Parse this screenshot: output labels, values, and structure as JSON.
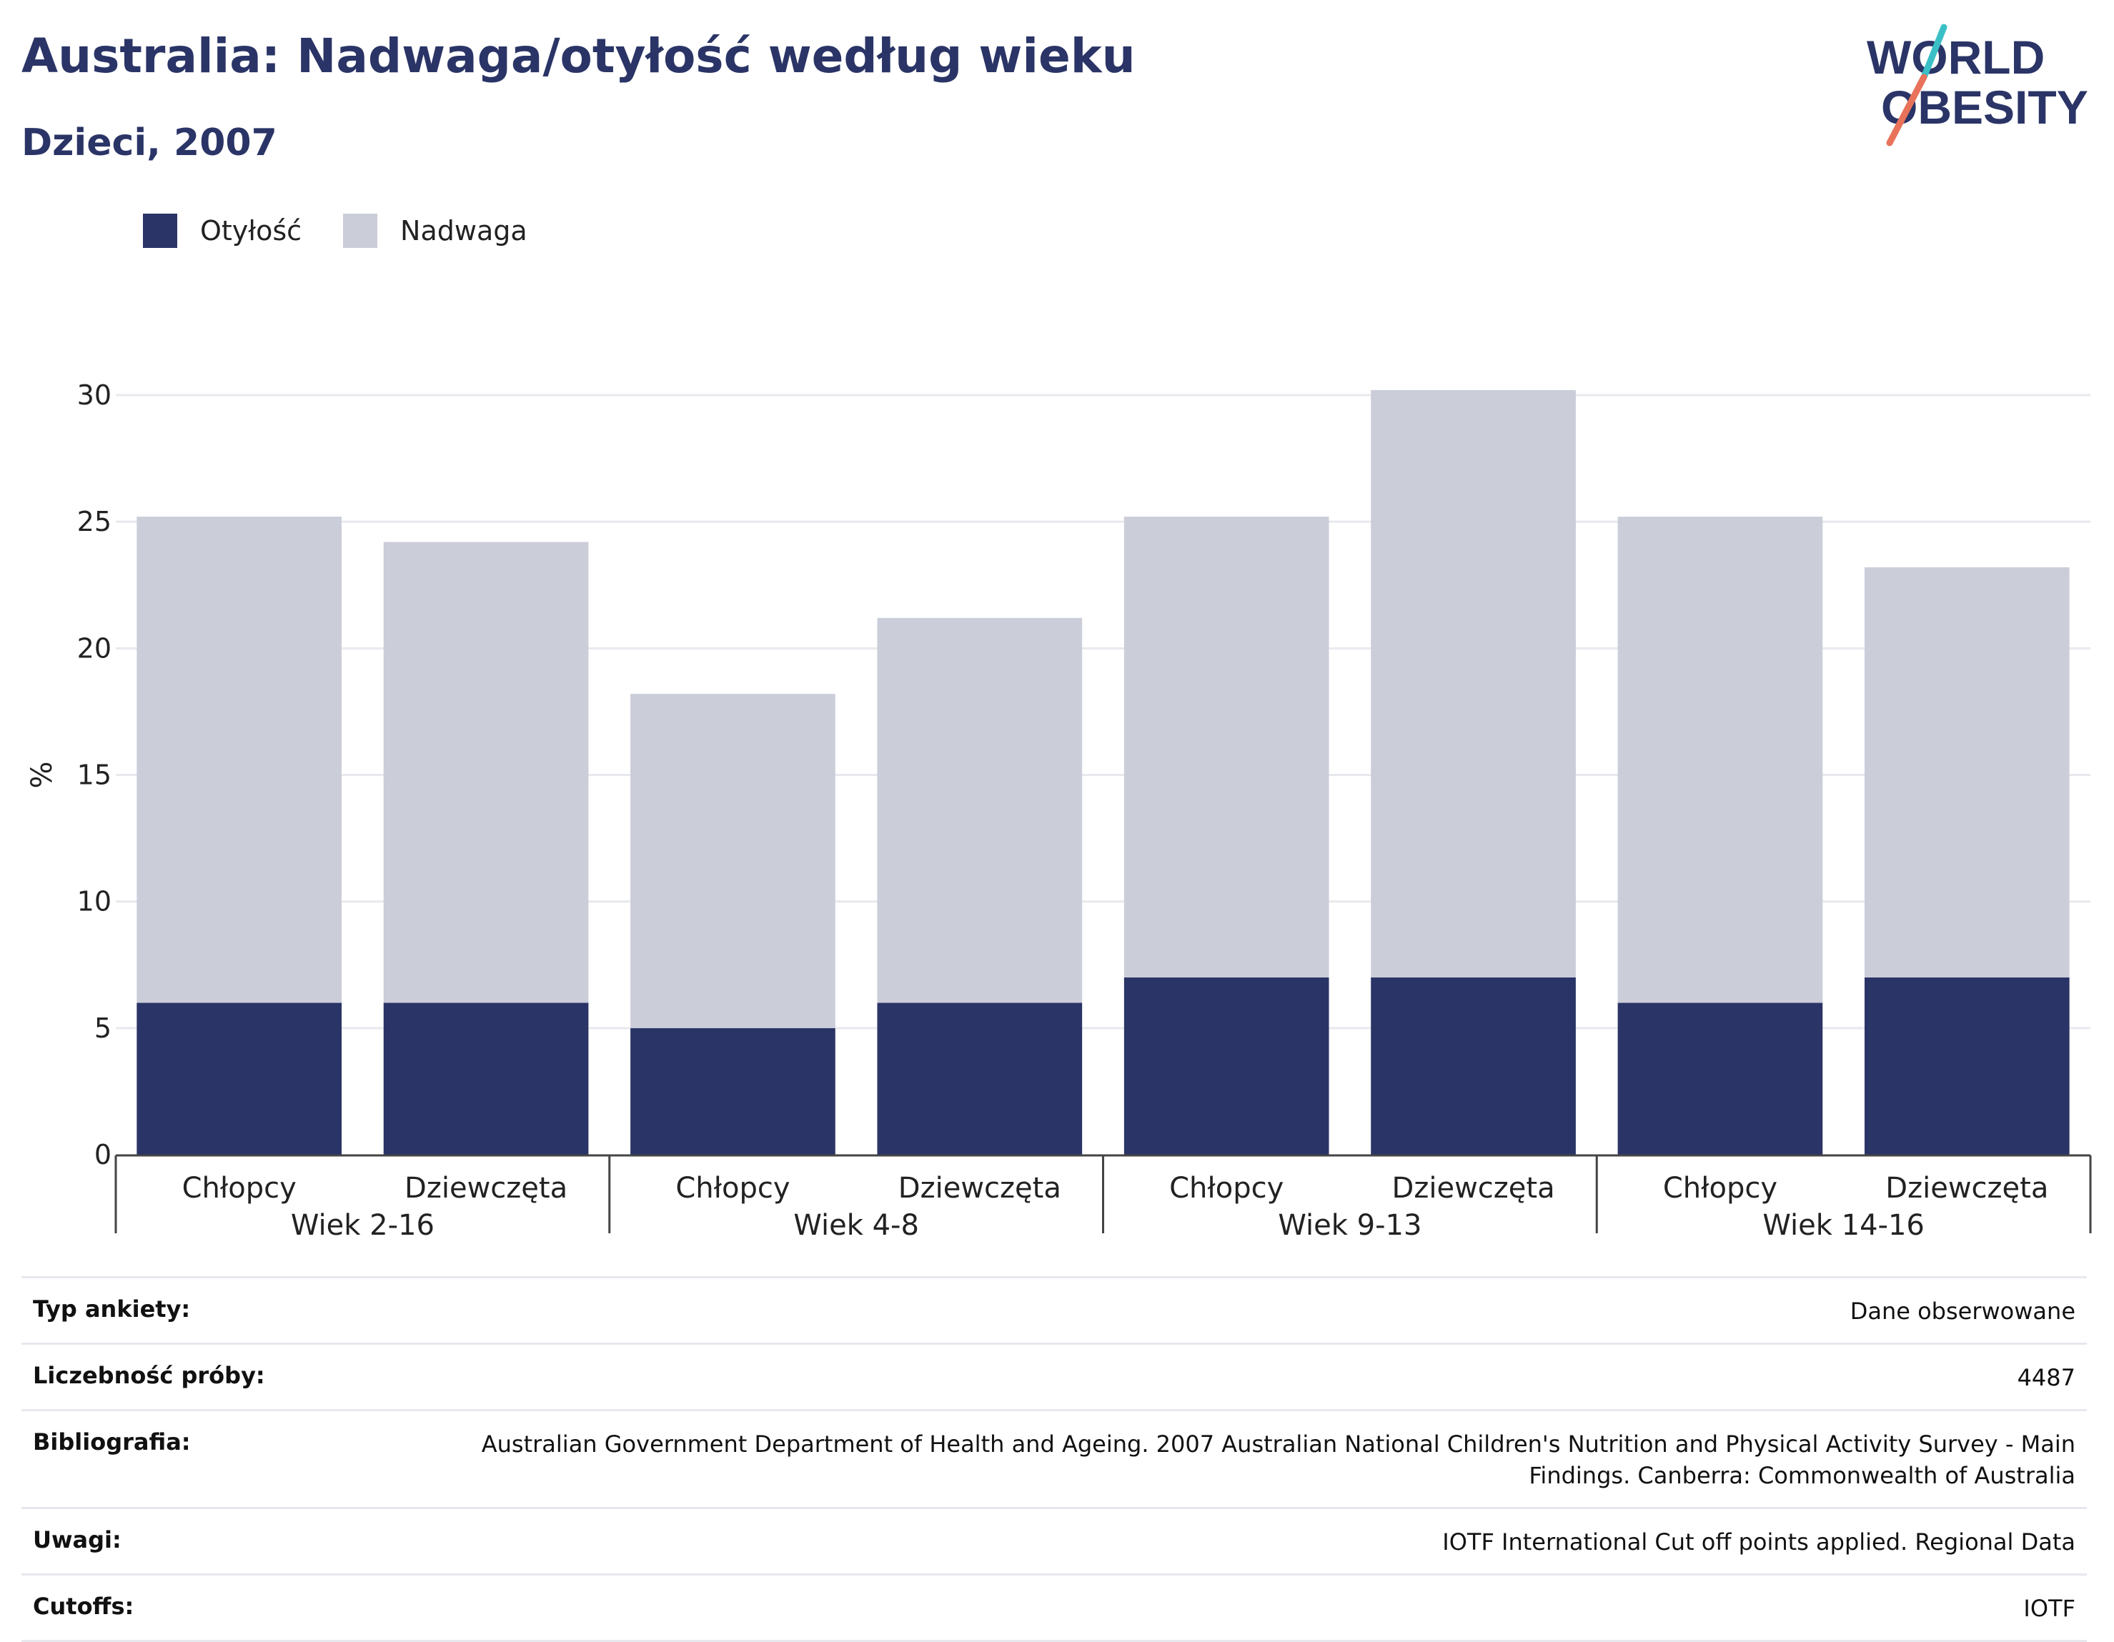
{
  "header": {
    "title": "Australia: Nadwaga/otyłość według wieku",
    "subtitle": "Dzieci, 2007"
  },
  "logo": {
    "line1": "WORLD",
    "line2": "OBESITY"
  },
  "colors": {
    "obesity": "#2a3466",
    "overweight": "#cbcdd9",
    "title": "#2a3466",
    "logo_teal": "#3bbfc6",
    "logo_red": "#e8735a"
  },
  "chart_data": {
    "type": "bar",
    "stacked": true,
    "ylabel": "%",
    "ylim": [
      0,
      30
    ],
    "yticks": [
      0,
      5,
      10,
      15,
      20,
      25,
      30
    ],
    "grid": true,
    "legend_position": "top-left",
    "groups": [
      {
        "label": "Wiek 2-16",
        "categories": [
          "Chłopcy",
          "Dziewczęta"
        ]
      },
      {
        "label": "Wiek 4-8",
        "categories": [
          "Chłopcy",
          "Dziewczęta"
        ]
      },
      {
        "label": "Wiek 9-13",
        "categories": [
          "Chłopcy",
          "Dziewczęta"
        ]
      },
      {
        "label": "Wiek 14-16",
        "categories": [
          "Chłopcy",
          "Dziewczęta"
        ]
      }
    ],
    "series": [
      {
        "name": "Otyłość",
        "values": [
          6,
          6,
          5,
          6,
          7,
          7,
          6,
          7
        ]
      },
      {
        "name": "Nadwaga",
        "values": [
          19.2,
          18.2,
          13.2,
          15.2,
          18.2,
          23.2,
          19.2,
          16.2
        ]
      }
    ]
  },
  "table": [
    {
      "key": "Typ ankiety:",
      "value": "Dane obserwowane"
    },
    {
      "key": "Liczebność próby:",
      "value": "4487"
    },
    {
      "key": "Bibliografia:",
      "value": "Australian Government Department of Health and Ageing. 2007 Australian National Children's Nutrition and Physical Activity Survey - Main Findings. Canberra: Commonwealth of Australia"
    },
    {
      "key": "Uwagi:",
      "value": "IOTF International Cut off points applied. Regional Data"
    },
    {
      "key": "Cutoffs:",
      "value": "IOTF"
    }
  ]
}
